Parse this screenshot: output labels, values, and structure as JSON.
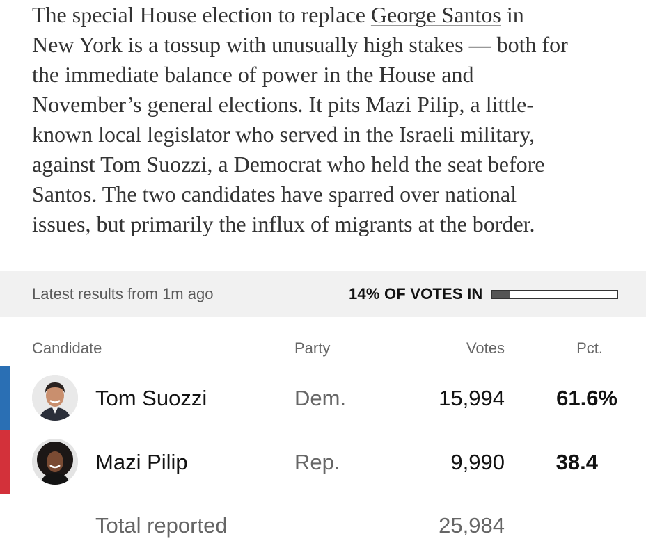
{
  "article": {
    "lines": [
      {
        "pre": "The special House election to replace ",
        "link": "George Santos",
        "post": " in"
      },
      {
        "text": "New York is a tossup with unusually high stakes — both for"
      },
      {
        "text": "the immediate balance of power in the House and"
      },
      {
        "text": "November’s general elections. It pits Mazi Pilip, a little-"
      },
      {
        "text": "known local legislator who served in the Israeli military,"
      },
      {
        "text": "against Tom Suozzi, a Democrat who held the seat before"
      },
      {
        "text": "Santos. The two candidates have sparred over national"
      },
      {
        "text": "issues, but primarily the influx of migrants at the border."
      }
    ]
  },
  "results": {
    "latest": "Latest results from 1m ago",
    "votes_in": "14% OF VOTES IN",
    "votes_in_fraction": 0.14
  },
  "table": {
    "headers": {
      "candidate": "Candidate",
      "party": "Party",
      "votes": "Votes",
      "pct": "Pct."
    },
    "rows": [
      {
        "name": "Tom Suozzi",
        "party": "Dem.",
        "votes": "15,994",
        "pct": "61.6%",
        "color": "#2a6fb4"
      },
      {
        "name": "Mazi Pilip",
        "party": "Rep.",
        "votes": "9,990",
        "pct": "38.4",
        "color": "#d3313a"
      }
    ],
    "total_label": "Total reported",
    "total_votes": "25,984"
  }
}
